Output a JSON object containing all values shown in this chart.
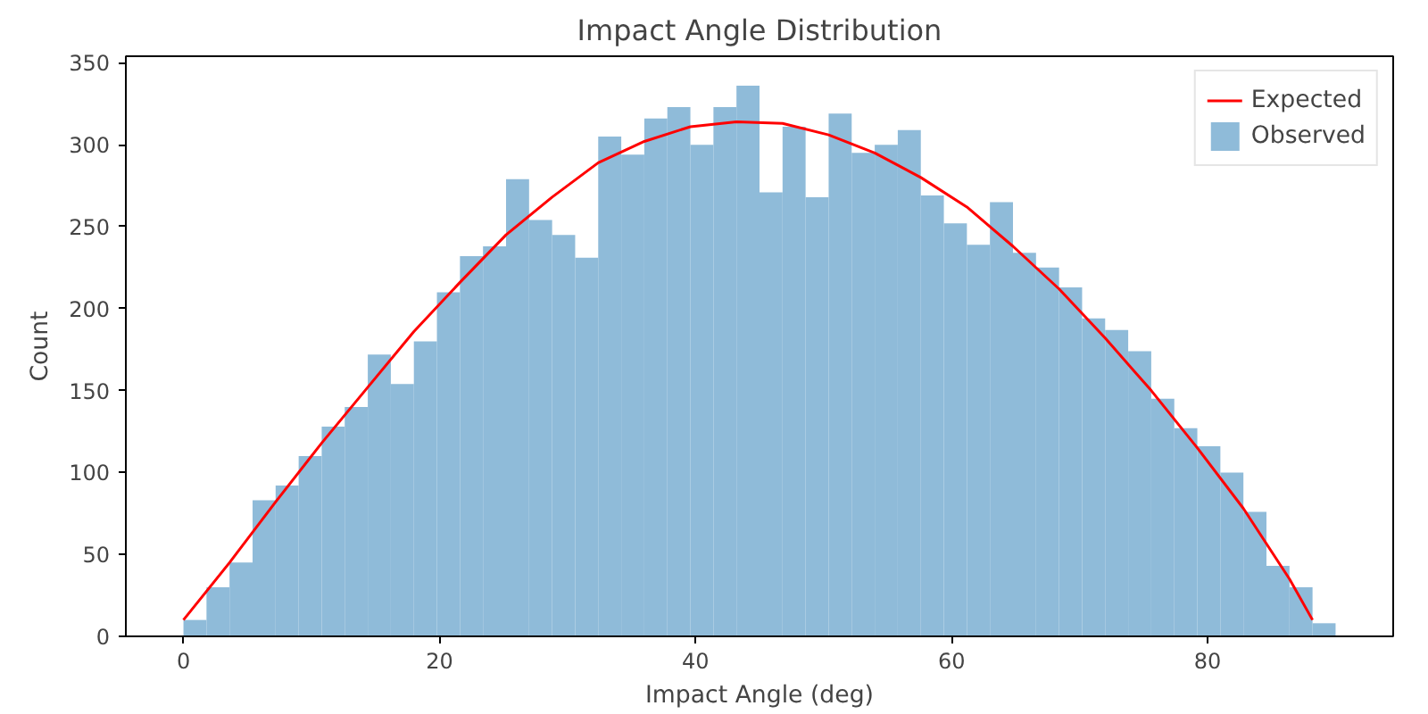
{
  "chart_data": {
    "type": "histogram",
    "title": "Impact Angle Distribution",
    "xlabel": "Impact Angle (deg)",
    "ylabel": "Count",
    "bins": [
      0,
      1.8,
      3.6,
      5.4,
      7.2,
      9,
      10.8,
      12.6,
      14.4,
      16.2,
      18,
      19.8,
      21.6,
      23.4,
      25.2,
      27,
      28.8,
      30.6,
      32.4,
      34.2,
      36,
      37.8,
      39.6,
      41.4,
      43.2,
      45,
      46.8,
      48.6,
      50.4,
      52.2,
      54,
      55.8,
      57.6,
      59.4,
      61.2,
      63,
      64.8,
      66.6,
      68.4,
      70.2,
      72,
      73.8,
      75.6,
      77.4,
      79.2,
      81,
      82.8,
      84.6,
      86.4,
      88.2,
      90
    ],
    "series": [
      {
        "name": "Observed",
        "color": "#8fbbd9",
        "values": [
          10,
          30,
          45,
          83,
          92,
          110,
          128,
          140,
          172,
          154,
          180,
          210,
          232,
          238,
          279,
          254,
          245,
          231,
          305,
          294,
          316,
          323,
          300,
          323,
          336,
          271,
          311,
          268,
          319,
          295,
          300,
          309,
          269,
          252,
          239,
          265,
          234,
          225,
          213,
          194,
          187,
          174,
          145,
          127,
          116,
          100,
          76,
          43,
          30,
          8
        ]
      },
      {
        "name": "Expected",
        "type": "line",
        "color": "#ff0000",
        "x": [
          0,
          3.6,
          7.2,
          10.8,
          14.4,
          18,
          21.6,
          25.2,
          28.8,
          32.4,
          36,
          39.6,
          43.2,
          46.8,
          50.4,
          54,
          57.6,
          61.2,
          64.8,
          68.4,
          72,
          75.6,
          79.2,
          82.8,
          86.4,
          88.2
        ],
        "values": [
          10,
          45,
          82,
          118,
          152,
          186,
          216,
          245,
          268,
          289,
          302,
          311,
          314,
          313,
          306,
          295,
          280,
          262,
          238,
          212,
          182,
          150,
          115,
          78,
          35,
          10
        ]
      }
    ],
    "xlim": [
      -4.5,
      94.5
    ],
    "xticks": [
      0,
      20,
      40,
      60,
      80
    ],
    "ylim": [
      0,
      354
    ],
    "yticks": [
      0,
      50,
      100,
      150,
      200,
      250,
      300,
      350
    ],
    "legend": "top right",
    "grid": false,
    "line_style": "solid",
    "marker": "none"
  }
}
